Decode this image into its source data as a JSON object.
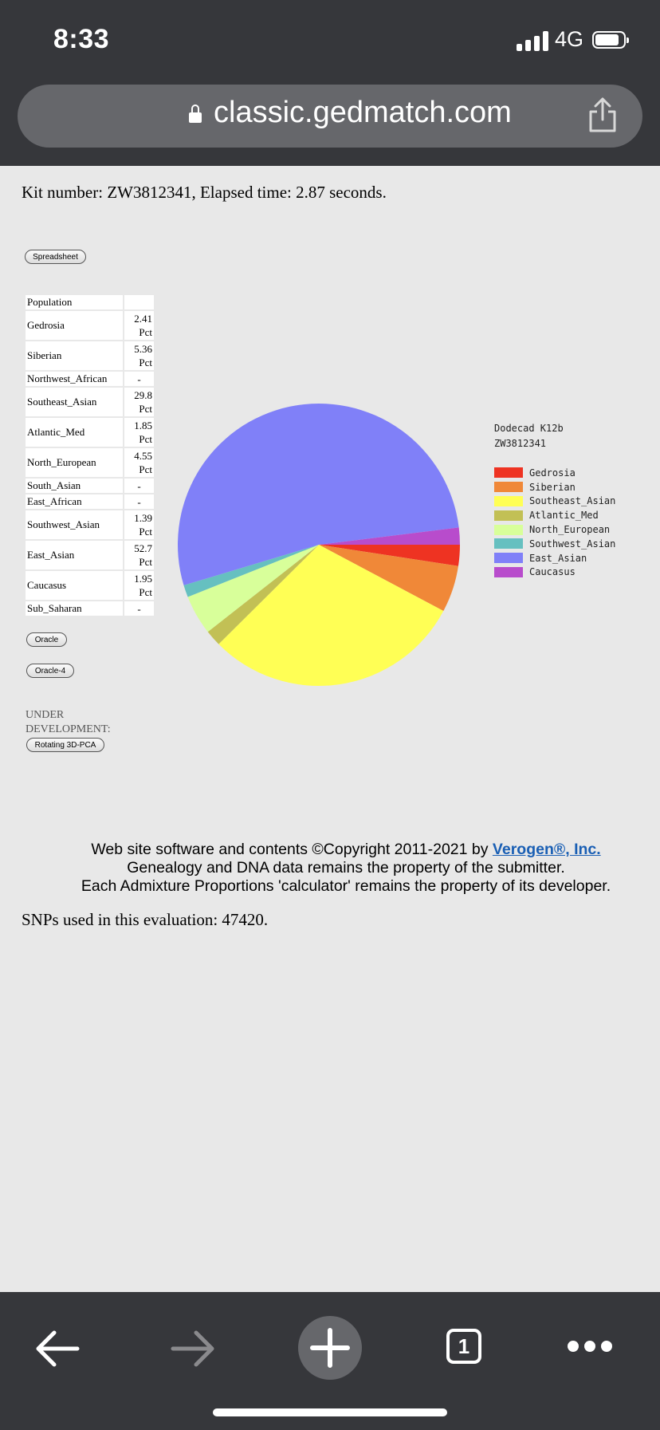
{
  "status_bar": {
    "time": "8:33",
    "network": "4G",
    "battery_level": 0.85
  },
  "address_bar": {
    "url": "classic.gedmatch.com",
    "lock_icon": "lock-icon",
    "share_icon": "share-icon"
  },
  "page": {
    "kit_line": "Kit number: ZW3812341, Elapsed time: 2.87 seconds.",
    "spreadsheet_button": "Spreadsheet",
    "table_header": "Population",
    "oracle_button": "Oracle",
    "oracle4_button": "Oracle-4",
    "under_development": "UNDER DEVELOPMENT:",
    "rotating_button": "Rotating 3D-PCA",
    "snps_line": "SNPs used in this evaluation: 47420."
  },
  "populations": [
    {
      "name": "Gedrosia",
      "pct": "2.41",
      "unit": "Pct"
    },
    {
      "name": "Siberian",
      "pct": "5.36",
      "unit": "Pct"
    },
    {
      "name": "Northwest_African",
      "pct": "-",
      "unit": ""
    },
    {
      "name": "Southeast_Asian",
      "pct": "29.8",
      "unit": "Pct"
    },
    {
      "name": "Atlantic_Med",
      "pct": "1.85",
      "unit": "Pct"
    },
    {
      "name": "North_European",
      "pct": "4.55",
      "unit": "Pct"
    },
    {
      "name": "South_Asian",
      "pct": "-",
      "unit": ""
    },
    {
      "name": "East_African",
      "pct": "-",
      "unit": ""
    },
    {
      "name": "Southwest_Asian",
      "pct": "1.39",
      "unit": "Pct"
    },
    {
      "name": "East_Asian",
      "pct": "52.7",
      "unit": "Pct"
    },
    {
      "name": "Caucasus",
      "pct": "1.95",
      "unit": "Pct"
    },
    {
      "name": "Sub_Saharan",
      "pct": "-",
      "unit": ""
    }
  ],
  "chart_data": {
    "type": "pie",
    "title": "Dodecad K12b",
    "subtitle": "ZW3812341",
    "legend_position": "right",
    "slices": [
      {
        "label": "Gedrosia",
        "value": 2.41,
        "color": "#ee3322"
      },
      {
        "label": "Siberian",
        "value": 5.36,
        "color": "#f08838"
      },
      {
        "label": "Southeast_Asian",
        "value": 29.8,
        "color": "#ffff55"
      },
      {
        "label": "Atlantic_Med",
        "value": 1.85,
        "color": "#c2c055"
      },
      {
        "label": "North_European",
        "value": 4.55,
        "color": "#d8ff9a"
      },
      {
        "label": "Southwest_Asian",
        "value": 1.39,
        "color": "#66c0c0"
      },
      {
        "label": "East_Asian",
        "value": 52.7,
        "color": "#8080f8"
      },
      {
        "label": "Caucasus",
        "value": 1.95,
        "color": "#b84ccc"
      }
    ]
  },
  "footer": {
    "line1_prefix": "Web site software and contents ©Copyright 2011-2021 by ",
    "line1_link": "Verogen®, Inc.",
    "line2": "Genealogy and DNA data remains the property of the submitter.",
    "line3": "Each Admixture Proportions 'calculator' remains the property of its developer."
  },
  "toolbar": {
    "tab_count": "1",
    "icons": [
      "back-arrow-icon",
      "forward-arrow-icon",
      "new-tab-plus-icon",
      "tabs-icon",
      "more-dots-icon"
    ]
  }
}
